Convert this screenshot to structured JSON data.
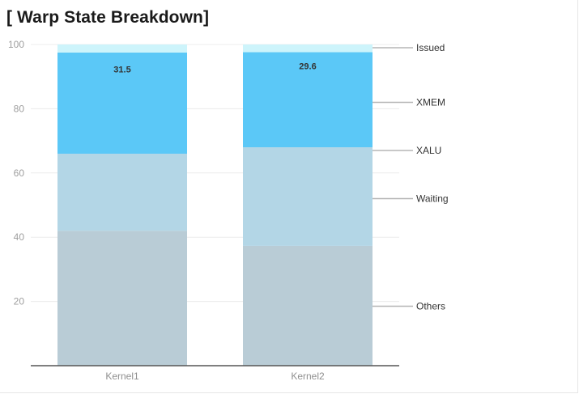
{
  "chart_data": {
    "type": "bar",
    "stacked": true,
    "title": "[ Warp State Breakdown]",
    "xlabel": "",
    "ylabel": "",
    "ylim": [
      0,
      100
    ],
    "yticks": [
      20,
      40,
      60,
      80,
      100
    ],
    "grid": true,
    "legend": "right, inline labels",
    "categories": [
      "Kernel1",
      "Kernel2"
    ],
    "series": [
      {
        "name": "Others",
        "values": [
          42,
          37.3
        ],
        "color": "#b9ccd6"
      },
      {
        "name": "Waiting",
        "values": [
          24,
          30.7
        ],
        "color": "#b3d6e6"
      },
      {
        "name": "XALU",
        "values": [
          0,
          0
        ],
        "color": "#9fd3ee"
      },
      {
        "name": "XMEM",
        "values": [
          31.5,
          29.6
        ],
        "color": "#5bc8f7"
      },
      {
        "name": "Issued",
        "values": [
          2.5,
          2.4
        ],
        "color": "#cdf4fb"
      }
    ],
    "data_labels": [
      {
        "series": "XMEM",
        "category": "Kernel1",
        "text": "31.5"
      },
      {
        "series": "XMEM",
        "category": "Kernel2",
        "text": "29.6"
      }
    ]
  }
}
